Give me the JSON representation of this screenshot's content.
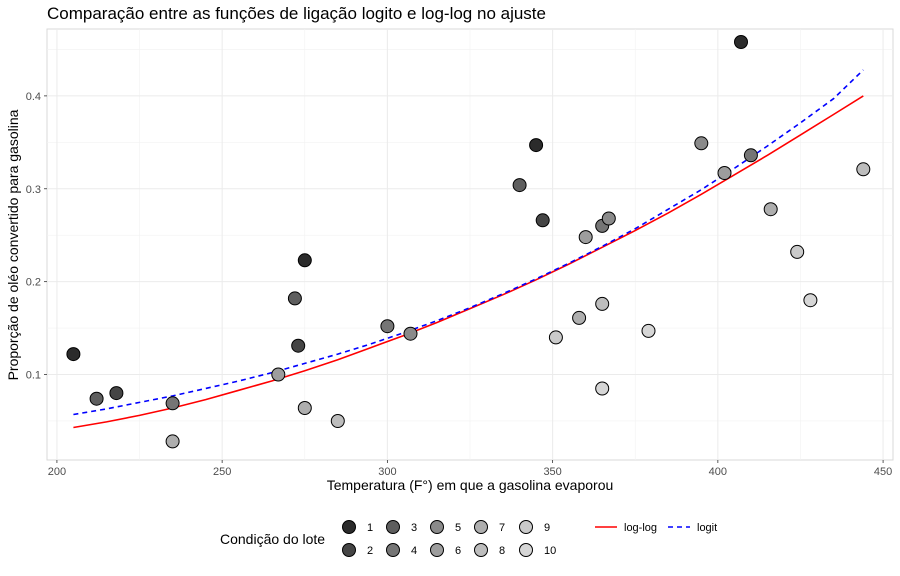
{
  "chart_data": {
    "type": "scatter",
    "title": "Comparação entre as funções de ligação logito e log-log no ajuste",
    "xlabel": "Temperatura (F°) em que a gasolina evaporou",
    "ylabel": "Proporção de oléo convertido para gasolina",
    "xlim": [
      197,
      453
    ],
    "ylim": [
      0.008,
      0.472
    ],
    "xticks": [
      200,
      250,
      300,
      350,
      400,
      450
    ],
    "yticks": [
      0.1,
      0.2,
      0.3,
      0.4
    ],
    "grid": true,
    "legend_placement": "bottom",
    "point_legend": {
      "title": "Condição do lote",
      "levels": [
        "1",
        "2",
        "3",
        "4",
        "5",
        "6",
        "7",
        "8",
        "9",
        "10"
      ]
    },
    "points": [
      {
        "x": 205,
        "y": 0.122,
        "batch": 1
      },
      {
        "x": 275,
        "y": 0.223,
        "batch": 1
      },
      {
        "x": 345,
        "y": 0.347,
        "batch": 1
      },
      {
        "x": 407,
        "y": 0.458,
        "batch": 1
      },
      {
        "x": 218,
        "y": 0.08,
        "batch": 2
      },
      {
        "x": 273,
        "y": 0.131,
        "batch": 2
      },
      {
        "x": 347,
        "y": 0.266,
        "batch": 2
      },
      {
        "x": 212,
        "y": 0.074,
        "batch": 3
      },
      {
        "x": 272,
        "y": 0.182,
        "batch": 3
      },
      {
        "x": 340,
        "y": 0.304,
        "batch": 3
      },
      {
        "x": 235,
        "y": 0.069,
        "batch": 4
      },
      {
        "x": 300,
        "y": 0.152,
        "batch": 4
      },
      {
        "x": 365,
        "y": 0.26,
        "batch": 4
      },
      {
        "x": 410,
        "y": 0.336,
        "batch": 4
      },
      {
        "x": 307,
        "y": 0.144,
        "batch": 5
      },
      {
        "x": 367,
        "y": 0.268,
        "batch": 5
      },
      {
        "x": 395,
        "y": 0.349,
        "batch": 5
      },
      {
        "x": 267,
        "y": 0.1,
        "batch": 6
      },
      {
        "x": 360,
        "y": 0.248,
        "batch": 6
      },
      {
        "x": 402,
        "y": 0.317,
        "batch": 6
      },
      {
        "x": 235,
        "y": 0.028,
        "batch": 7
      },
      {
        "x": 275,
        "y": 0.064,
        "batch": 7
      },
      {
        "x": 358,
        "y": 0.161,
        "batch": 7
      },
      {
        "x": 416,
        "y": 0.278,
        "batch": 7
      },
      {
        "x": 285,
        "y": 0.05,
        "batch": 8
      },
      {
        "x": 365,
        "y": 0.176,
        "batch": 8
      },
      {
        "x": 444,
        "y": 0.321,
        "batch": 8
      },
      {
        "x": 351,
        "y": 0.14,
        "batch": 9
      },
      {
        "x": 424,
        "y": 0.232,
        "batch": 9
      },
      {
        "x": 365,
        "y": 0.085,
        "batch": 10
      },
      {
        "x": 379,
        "y": 0.147,
        "batch": 10
      },
      {
        "x": 428,
        "y": 0.18,
        "batch": 10
      }
    ],
    "batch_colors": [
      "#2b2b2b",
      "#454545",
      "#5e5e5e",
      "#757575",
      "#8a8a8a",
      "#9d9d9d",
      "#aeaeae",
      "#bdbdbd",
      "#cacaca",
      "#d6d6d6"
    ],
    "series": [
      {
        "name": "log-log",
        "color": "#ff0000",
        "dash": "solid",
        "x": [
          205,
          215,
          225,
          235,
          245,
          255,
          265,
          275,
          285,
          295,
          305,
          315,
          325,
          335,
          345,
          355,
          365,
          375,
          385,
          395,
          405,
          415,
          425,
          435,
          444
        ],
        "y": [
          0.043,
          0.049,
          0.056,
          0.064,
          0.073,
          0.083,
          0.093,
          0.104,
          0.116,
          0.129,
          0.142,
          0.156,
          0.171,
          0.186,
          0.202,
          0.219,
          0.237,
          0.255,
          0.274,
          0.294,
          0.315,
          0.336,
          0.358,
          0.38,
          0.4
        ]
      },
      {
        "name": "logit",
        "color": "#0000ff",
        "dash": "dashed",
        "x": [
          205,
          215,
          225,
          235,
          245,
          255,
          265,
          275,
          285,
          295,
          305,
          315,
          325,
          335,
          345,
          355,
          365,
          375,
          385,
          395,
          405,
          415,
          425,
          435,
          444
        ],
        "y": [
          0.057,
          0.063,
          0.07,
          0.077,
          0.085,
          0.093,
          0.102,
          0.112,
          0.122,
          0.133,
          0.145,
          0.158,
          0.172,
          0.187,
          0.203,
          0.22,
          0.238,
          0.257,
          0.278,
          0.299,
          0.322,
          0.346,
          0.371,
          0.397,
          0.428
        ]
      }
    ]
  }
}
